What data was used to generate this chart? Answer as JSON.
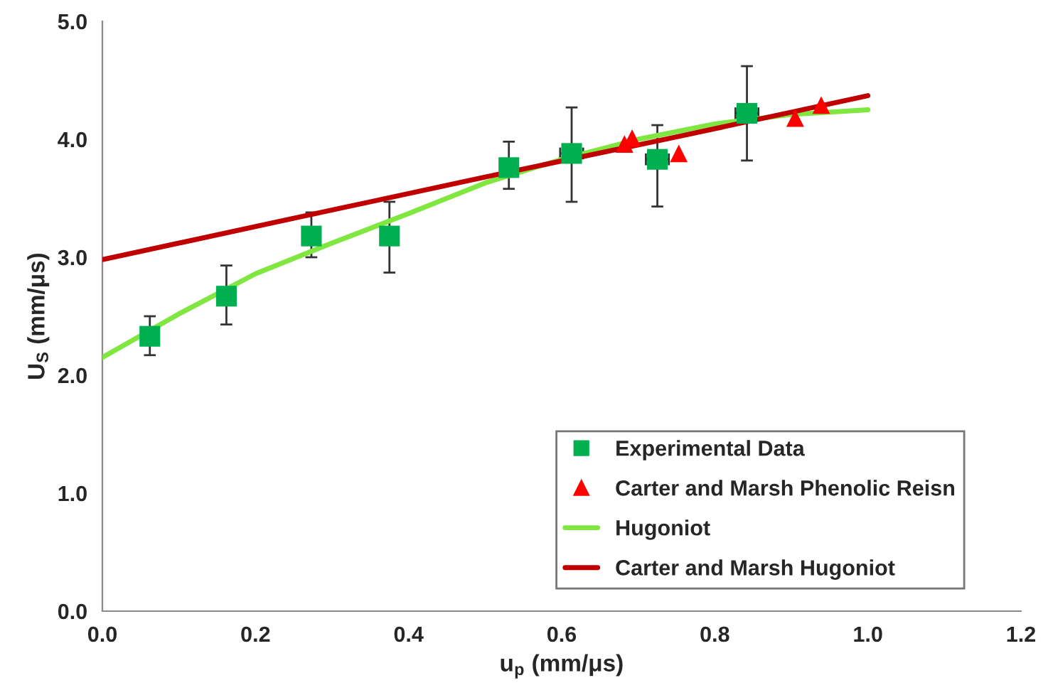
{
  "chart_data": {
    "type": "scatter",
    "xlabel": "u$_{p}$ (mm/μs)",
    "ylabel": "U$_{S}$ (mm/μs)",
    "series": [
      {
        "name": "Experimental Data",
        "marker": "square",
        "color": "#00b050",
        "x": [
          0.062,
          0.162,
          0.273,
          0.375,
          0.531,
          0.613,
          0.725,
          0.842
        ],
        "values": [
          2.33,
          2.67,
          3.18,
          3.18,
          3.76,
          3.88,
          3.83,
          4.22
        ],
        "errors": [
          [
            2.17,
            2.5
          ],
          [
            2.43,
            2.93
          ],
          [
            3.0,
            3.38
          ],
          [
            2.87,
            3.47
          ],
          [
            3.58,
            3.98
          ],
          [
            3.47,
            4.27
          ],
          [
            3.43,
            4.12
          ],
          [
            3.82,
            4.62
          ]
        ],
        "xerrors": [
          null,
          null,
          null,
          null,
          null,
          0.015,
          0.015,
          0.015
        ]
      },
      {
        "name": "Carter and Marsh Phenolic Reisn",
        "marker": "triangle",
        "color": "#ff0000",
        "x": [
          0.682,
          0.692,
          0.753,
          0.905,
          0.939
        ],
        "values": [
          3.96,
          4.01,
          3.88,
          4.18,
          4.29
        ]
      },
      {
        "name": "Hugoniot",
        "type": "line",
        "marker": "none",
        "color": "#80e640",
        "x": [
          0,
          0.1,
          0.2,
          0.3,
          0.4,
          0.5,
          0.6,
          0.7,
          0.8,
          0.9,
          1.0
        ],
        "values": [
          2.15,
          2.52,
          2.86,
          3.12,
          3.37,
          3.63,
          3.83,
          4.0,
          4.13,
          4.21,
          4.25
        ]
      },
      {
        "name": "Carter and Marsh Hugoniot",
        "type": "line",
        "marker": "none",
        "color": "#c00000",
        "x": [
          0,
          0.25,
          0.5,
          0.75,
          1.0
        ],
        "values": [
          2.98,
          3.33,
          3.68,
          4.02,
          4.37
        ]
      }
    ],
    "xlim": [
      0,
      1.2
    ],
    "xticks": [
      {
        "value": 0,
        "label": "0.0"
      },
      0.2,
      0.4,
      0.6,
      0.8,
      {
        "value": 1.0,
        "label": "1.0"
      },
      1.2
    ],
    "ylim": [
      0,
      5
    ],
    "yticks": [
      {
        "value": 0,
        "label": "0.0"
      },
      {
        "value": 1,
        "label": "1.0"
      },
      {
        "value": 2,
        "label": "2.0"
      },
      {
        "value": 3,
        "label": "3.0"
      },
      {
        "value": 4,
        "label": "4.0"
      },
      {
        "value": 5,
        "label": "5.0"
      }
    ],
    "grid": false,
    "legend": "bottom right"
  }
}
